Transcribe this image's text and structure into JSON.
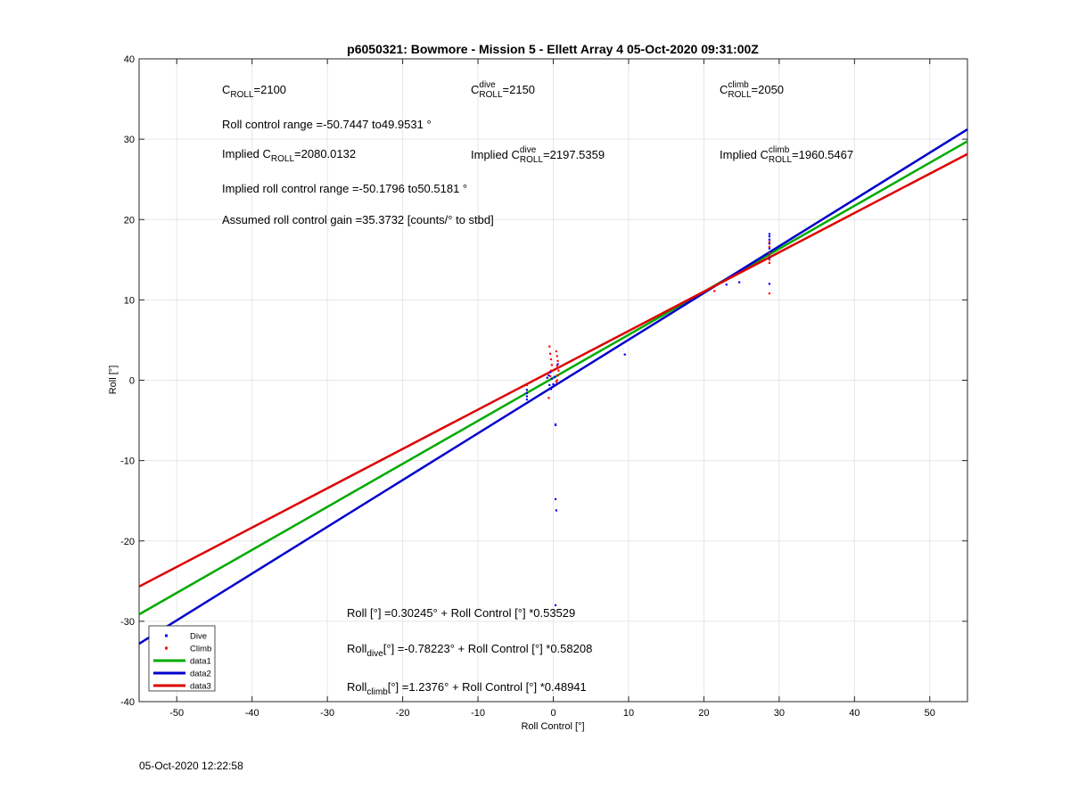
{
  "footer": {
    "timestamp": "05-Oct-2020 12:22:58"
  },
  "chart_data": {
    "type": "scatter",
    "title": "p6050321: Bowmore - Mission 5 - Ellett Array 4 05-Oct-2020 09:31:00Z",
    "xlabel": "Roll Control [°]",
    "ylabel": "Roll [°]",
    "xlim": [
      -55,
      55
    ],
    "ylim": [
      -40,
      40
    ],
    "xticks": [
      -50,
      -40,
      -30,
      -20,
      -10,
      0,
      10,
      20,
      30,
      40,
      50
    ],
    "yticks": [
      -40,
      -30,
      -20,
      -10,
      0,
      10,
      20,
      30,
      40
    ],
    "grid": true,
    "legend_position": "bottom-left",
    "series": [
      {
        "name": "Dive",
        "kind": "points",
        "color": "#0000ff",
        "x": [
          -3.5,
          -3.5,
          -3.5,
          -3.5,
          -0.8,
          -0.6,
          -0.4,
          -0.2,
          0.0,
          0.2,
          0.3,
          0.3,
          0.3,
          0.4,
          0.3,
          0.6,
          -0.5,
          -0.3,
          9.5,
          23,
          24.7,
          28.7,
          28.7,
          28.7,
          28.7,
          28.7,
          28.7,
          28.7,
          28.7
        ],
        "y": [
          -1.2,
          -1.6,
          -2.0,
          -2.4,
          0.3,
          0.6,
          1.0,
          0.2,
          -0.5,
          0.4,
          -5.5,
          -5.6,
          -14.8,
          -16.2,
          -28,
          2.0,
          -0.6,
          -1.1,
          3.2,
          11.9,
          12.2,
          12.0,
          15.2,
          15.8,
          16.4,
          17.0,
          17.5,
          17.9,
          18.2
        ]
      },
      {
        "name": "Climb",
        "kind": "points",
        "color": "#ff0000",
        "x": [
          -3.5,
          -0.5,
          -0.4,
          -0.3,
          -0.2,
          -0.3,
          -0.4,
          -0.6,
          0.4,
          0.5,
          0.6,
          0.5,
          0.7,
          0.6,
          0.5,
          0.4,
          21.4,
          28.7,
          28.7,
          28.7,
          28.7,
          28.7,
          28.7,
          28.7
        ],
        "y": [
          -0.6,
          4.2,
          3.3,
          2.6,
          1.9,
          1.2,
          0.5,
          -2.2,
          3.6,
          3.0,
          2.4,
          1.8,
          1.2,
          0.6,
          0.0,
          -0.2,
          11.1,
          10.8,
          14.6,
          15.0,
          15.4,
          15.8,
          16.6,
          17.2
        ]
      },
      {
        "name": "data1",
        "kind": "line",
        "color": "#00aa00",
        "intercept": 0.30245,
        "slope": 0.53529
      },
      {
        "name": "data2",
        "kind": "line",
        "color": "#0000cc",
        "intercept": -0.78223,
        "slope": 0.58208
      },
      {
        "name": "data3",
        "kind": "line",
        "color": "#dd0000",
        "intercept": 1.2376,
        "slope": 0.48941
      }
    ],
    "annotations": [
      {
        "id": "c-roll",
        "main": "C",
        "sub": "ROLL",
        "rest": "=2100"
      },
      {
        "id": "c-roll-dive",
        "main": "C",
        "sup": "dive",
        "sub": "ROLL",
        "rest": " =2150"
      },
      {
        "id": "c-roll-climb",
        "main": "C",
        "sup": "climb",
        "sub": "ROLL",
        "rest": " =2050"
      },
      {
        "id": "roll-control-range",
        "main": "Roll control range =-50.7447 to49.9531 °"
      },
      {
        "id": "implied-c-roll",
        "main": "Implied C",
        "sub": "ROLL",
        "rest": " =2080.0132"
      },
      {
        "id": "implied-c-roll-dive",
        "main": "Implied C",
        "sup": "dive",
        "sub": "ROLL",
        "rest": " =2197.5359"
      },
      {
        "id": "implied-c-roll-climb",
        "main": "Implied C",
        "sup": "climb",
        "sub": "ROLL",
        "rest": " =1960.5467"
      },
      {
        "id": "implied-range",
        "main": "Implied roll control range =-50.1796 to50.5181 °"
      },
      {
        "id": "gain",
        "main": "Assumed roll control gain =35.3732 [counts/° to stbd]"
      },
      {
        "id": "fit-all",
        "main": "Roll [°] =0.30245° + Roll Control [°] *0.53529"
      },
      {
        "id": "fit-dive",
        "main": "Roll",
        "sub": "dive",
        "rest": " [°] =-0.78223° + Roll Control [°] *0.58208"
      },
      {
        "id": "fit-climb",
        "main": "Roll",
        "sub": "climb",
        "rest": " [°] =1.2376° + Roll Control [°] *0.48941"
      }
    ]
  }
}
